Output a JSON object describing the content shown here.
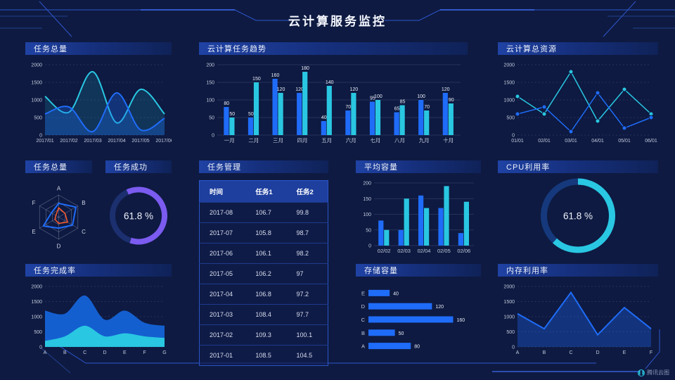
{
  "title": "云计算服务监控",
  "brand": "腾讯云图",
  "colors": {
    "blue": "#1f6cf9",
    "blue2": "#1563d8",
    "cyan": "#29c7e2",
    "purple": "#7b5bf0",
    "orange": "#ff5b2e",
    "bg": "#0e1a41",
    "frame": "#2e55cc",
    "frame_bright": "#3f6df5",
    "axis_text": "#c2cade",
    "value_text": "#e8edf8"
  },
  "chart_data": [
    {
      "panel": "任务总量",
      "type": "area",
      "smooth": true,
      "dashed": true,
      "x": [
        "2017/01",
        "2017/02",
        "2017/03",
        "2017/04",
        "2017/05",
        "2017/06"
      ],
      "ylim": [
        0,
        2000
      ],
      "yticks": [
        0,
        500,
        1000,
        1500,
        2000
      ],
      "series": [
        {
          "name": "series-cyan",
          "color": "cyan",
          "values": [
            1100,
            650,
            1800,
            350,
            1300,
            600
          ],
          "width": 2,
          "fill": 0.15
        },
        {
          "name": "series-blue",
          "color": "blue",
          "values": [
            600,
            800,
            100,
            1200,
            150,
            480
          ],
          "width": 2,
          "fill": 0.3
        }
      ]
    },
    {
      "panel": "云计算任务趋势",
      "type": "bar",
      "labels": true,
      "categories": [
        "一月",
        "二月",
        "三月",
        "四月",
        "五月",
        "六月",
        "七月",
        "八月",
        "九月",
        "十月"
      ],
      "ylim": [
        0,
        200
      ],
      "yticks": [
        0,
        50,
        100,
        150,
        200
      ],
      "margins": {
        "l": 26
      },
      "series": [
        {
          "name": "series-blue",
          "color": "blue",
          "values": [
            80,
            50,
            160,
            120,
            40,
            70,
            95,
            65,
            100,
            120
          ]
        },
        {
          "name": "series-cyan",
          "color": "cyan",
          "values": [
            50,
            150,
            120,
            180,
            140,
            120,
            100,
            85,
            70,
            90
          ]
        }
      ]
    },
    {
      "panel": "云计算总资源",
      "type": "line",
      "dashed": true,
      "x": [
        "01/01",
        "02/01",
        "03/01",
        "04/01",
        "05/01",
        "06/01"
      ],
      "ylim": [
        0,
        2000
      ],
      "yticks": [
        0,
        500,
        1000,
        1500,
        2000
      ],
      "series": [
        {
          "name": "series-cyan",
          "color": "cyan",
          "values": [
            1100,
            600,
            1800,
            400,
            1300,
            600
          ],
          "width": 1.5,
          "marker": true
        },
        {
          "name": "series-blue",
          "color": "blue",
          "values": [
            600,
            800,
            100,
            1200,
            200,
            500
          ],
          "width": 1.5,
          "marker": true
        }
      ]
    },
    {
      "panel": "任务总量",
      "type": "radar",
      "max": 1,
      "axes": [
        "A",
        "B",
        "C",
        "D",
        "E",
        "F"
      ],
      "series": [
        {
          "name": "series-blue",
          "color": "blue",
          "values": [
            0.62,
            0.9,
            0.72,
            0.5,
            0.8,
            0.38
          ],
          "width": 2
        },
        {
          "name": "series-orange",
          "color": "orange",
          "values": [
            0.42,
            0.33,
            0.46,
            0.28,
            0.2,
            0.15
          ],
          "width": 1.5
        }
      ]
    },
    {
      "panel": "任务成功",
      "type": "donut",
      "value": 61.8,
      "label": "61.8 %",
      "color": "purple",
      "track": "#1c2f6f",
      "rotate": -115,
      "stroke": 8
    },
    {
      "panel": "任务管理",
      "type": "table",
      "headers": [
        "时间",
        "任务1",
        "任务2"
      ],
      "rows": [
        [
          "2017-08",
          "106.7",
          "99.8"
        ],
        [
          "2017-07",
          "105.8",
          "98.7"
        ],
        [
          "2017-06",
          "106.1",
          "98.2"
        ],
        [
          "2017-05",
          "106.2",
          "97"
        ],
        [
          "2017-04",
          "106.8",
          "97.2"
        ],
        [
          "2017-03",
          "108.4",
          "97.7"
        ],
        [
          "2017-02",
          "109.3",
          "100.1"
        ],
        [
          "2017-01",
          "108.5",
          "104.5"
        ]
      ]
    },
    {
      "panel": "平均容量",
      "type": "bar",
      "labels": false,
      "categories": [
        "02/02",
        "02/03",
        "02/04",
        "02/05",
        "02/06"
      ],
      "ylim": [
        0,
        200
      ],
      "yticks": [
        0,
        50,
        100,
        150,
        200
      ],
      "margins": {
        "l": 26
      },
      "series": [
        {
          "name": "series-blue",
          "color": "blue",
          "values": [
            80,
            50,
            160,
            120,
            40
          ]
        },
        {
          "name": "series-cyan",
          "color": "cyan",
          "values": [
            50,
            150,
            120,
            190,
            140
          ]
        }
      ]
    },
    {
      "panel": "CPU利用率",
      "type": "donut",
      "value": 61.8,
      "label": "61.8 %",
      "color": "cyan",
      "track": "#15397c",
      "rotate": -90,
      "stroke": 9
    },
    {
      "panel": "任务完成率",
      "type": "area",
      "smooth": true,
      "dashed": true,
      "x": [
        "A",
        "B",
        "C",
        "D",
        "E",
        "F",
        "G"
      ],
      "ylim": [
        0,
        2000
      ],
      "yticks": [
        0,
        500,
        1000,
        1500,
        2000
      ],
      "series": [
        {
          "name": "series-blue",
          "color": "blue2",
          "values": [
            1200,
            1100,
            1700,
            900,
            1200,
            800,
            700
          ],
          "width": 0,
          "fill": 0.95
        },
        {
          "name": "series-cyan",
          "color": "cyan",
          "values": [
            200,
            350,
            700,
            350,
            450,
            350,
            300
          ],
          "width": 0,
          "fill": 1
        }
      ]
    },
    {
      "panel": "存储容量",
      "type": "hbar",
      "xlim": [
        0,
        170
      ],
      "color": "blue",
      "categories": [
        "E",
        "D",
        "C",
        "B",
        "A"
      ],
      "values": [
        40,
        120,
        160,
        50,
        80
      ]
    },
    {
      "panel": "内存利用率",
      "type": "line",
      "dashed": true,
      "x": [
        "A",
        "B",
        "C",
        "D",
        "E",
        "F"
      ],
      "ylim": [
        0,
        2000
      ],
      "yticks": [
        0,
        500,
        1000,
        1500,
        2000
      ],
      "series": [
        {
          "name": "series-blue",
          "color": "blue",
          "values": [
            1100,
            600,
            1800,
            400,
            1300,
            600
          ],
          "width": 2,
          "fill": 0.32
        }
      ]
    }
  ]
}
